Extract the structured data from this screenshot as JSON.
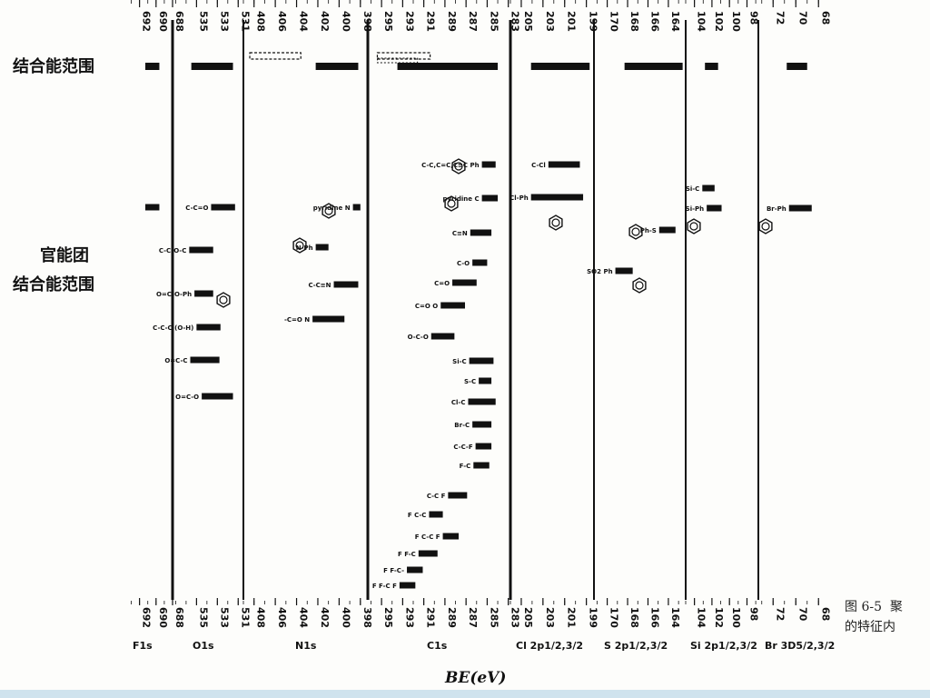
{
  "rows": {
    "range_label": "结合能范围",
    "group_label_1": "官能团",
    "group_label_2": "结合能范围"
  },
  "caption": {
    "line1": "图 6-5  聚",
    "line2": "的特征内"
  },
  "colors": {
    "ink": "#111111",
    "background": "#fdfdfb",
    "strip": "#cfe3ee"
  },
  "chart_data": {
    "type": "bar",
    "xlabel": "BE(eV)",
    "panels": [
      {
        "name": "F1s",
        "label": "F1s",
        "ticks": [
          692,
          690,
          688
        ],
        "range": [
          691.3,
          689.6
        ],
        "groups": [
          {
            "label": "",
            "range": [
              691.3,
              689.6
            ]
          }
        ]
      },
      {
        "name": "O1s",
        "label": "O1s",
        "ticks": [
          535,
          533,
          531
        ],
        "range": [
          535.5,
          531.5
        ],
        "groups": [
          {
            "label": "C-C=O",
            "range": [
              533.6,
              531.3
            ]
          },
          {
            "label": "C-C-O-C",
            "range": [
              535.7,
              533.4
            ]
          },
          {
            "label": "O=C-O-Ph",
            "range": [
              535.2,
              533.4
            ]
          },
          {
            "label": "C-C-C (O-H)",
            "range": [
              535.0,
              532.7
            ]
          },
          {
            "label": "O=C-C",
            "range": [
              535.6,
              532.8
            ]
          },
          {
            "label": "O=C-O",
            "range": [
              534.5,
              531.5
            ]
          }
        ]
      },
      {
        "name": "N1s",
        "label": "N1s",
        "ticks": [
          408,
          406,
          404,
          402,
          400,
          398
        ],
        "range": [
          402.2,
          398.2
        ],
        "groups": [
          {
            "label": "pyridine N",
            "range": [
              398.7,
              398.0
            ]
          },
          {
            "label": "N-Ph",
            "range": [
              402.2,
              401.0
            ]
          },
          {
            "label": "C-C≡N",
            "range": [
              400.5,
              398.2
            ]
          },
          {
            "label": "-C=O N",
            "range": [
              402.5,
              399.5
            ]
          }
        ]
      },
      {
        "name": "C1s",
        "label": "C1s",
        "ticks": [
          295,
          293,
          291,
          289,
          287,
          285,
          283
        ],
        "range": [
          293.5,
          284.0
        ],
        "groups": [
          {
            "label": "C-C,C=C,C≡C Ph",
            "range": [
              285.5,
              284.2
            ]
          },
          {
            "label": "pyridine C",
            "range": [
              285.5,
              284.0
            ]
          },
          {
            "label": "C≡N",
            "range": [
              286.6,
              284.6
            ]
          },
          {
            "label": "C-O",
            "range": [
              286.4,
              285.0
            ]
          },
          {
            "label": "C=O",
            "range": [
              288.3,
              286.0
            ]
          },
          {
            "label": "C=O O",
            "range": [
              289.4,
              287.1
            ]
          },
          {
            "label": "O-C-O",
            "range": [
              290.3,
              288.1
            ]
          },
          {
            "label": "Si-C",
            "range": [
              286.7,
              284.4
            ]
          },
          {
            "label": "S-C",
            "range": [
              285.8,
              284.6
            ]
          },
          {
            "label": "Cl-C",
            "range": [
              286.8,
              284.2
            ]
          },
          {
            "label": "Br-C",
            "range": [
              286.4,
              284.6
            ]
          },
          {
            "label": "C-C-F",
            "range": [
              286.1,
              284.6
            ]
          },
          {
            "label": "F-C",
            "range": [
              286.3,
              284.8
            ]
          },
          {
            "label": "C-C F",
            "range": [
              288.7,
              286.9
            ]
          },
          {
            "label": "F C-C",
            "range": [
              290.5,
              289.2
            ]
          },
          {
            "label": "F C-C F",
            "range": [
              289.2,
              287.7
            ]
          },
          {
            "label": "F F-C",
            "range": [
              291.5,
              289.7
            ]
          },
          {
            "label": "F F-C-",
            "range": [
              292.6,
              291.1
            ]
          },
          {
            "label": "F F-C F",
            "range": [
              293.3,
              291.8
            ]
          }
        ]
      },
      {
        "name": "Cl2p",
        "label": "Cl 2p1/2,3/2",
        "ticks": [
          205,
          203,
          201,
          199
        ],
        "range": [
          204.1,
          198.7
        ],
        "groups": [
          {
            "label": "C-Cl",
            "range": [
              202.5,
              199.6
            ]
          },
          {
            "label": "Cl-Ph",
            "range": [
              204.1,
              199.3
            ]
          }
        ]
      },
      {
        "name": "S2p",
        "label": "S 2p1/2,3/2",
        "ticks": [
          170,
          168,
          166,
          164
        ],
        "range": [
          168.3,
          162.6
        ],
        "groups": [
          {
            "label": "Ph-S",
            "range": [
              164.9,
              163.3
            ]
          },
          {
            "label": "SO2 Ph",
            "range": [
              169.2,
              167.5
            ]
          }
        ]
      },
      {
        "name": "Si2p",
        "label": "Si 2p1/2,3/2",
        "ticks": [
          104,
          102,
          100,
          98
        ],
        "range": [
          102.8,
          101.3
        ],
        "groups": [
          {
            "label": "Si-C",
            "range": [
              103.1,
              101.7
            ]
          },
          {
            "label": "Si-Ph",
            "range": [
              102.6,
              100.9
            ]
          }
        ]
      },
      {
        "name": "Br3d",
        "label": "Br 3D5/2,3/2",
        "ticks": [
          72,
          70,
          68
        ],
        "range": [
          70.8,
          69.0
        ],
        "groups": [
          {
            "label": "Br-Ph",
            "range": [
              70.6,
              68.6
            ]
          }
        ]
      }
    ]
  }
}
